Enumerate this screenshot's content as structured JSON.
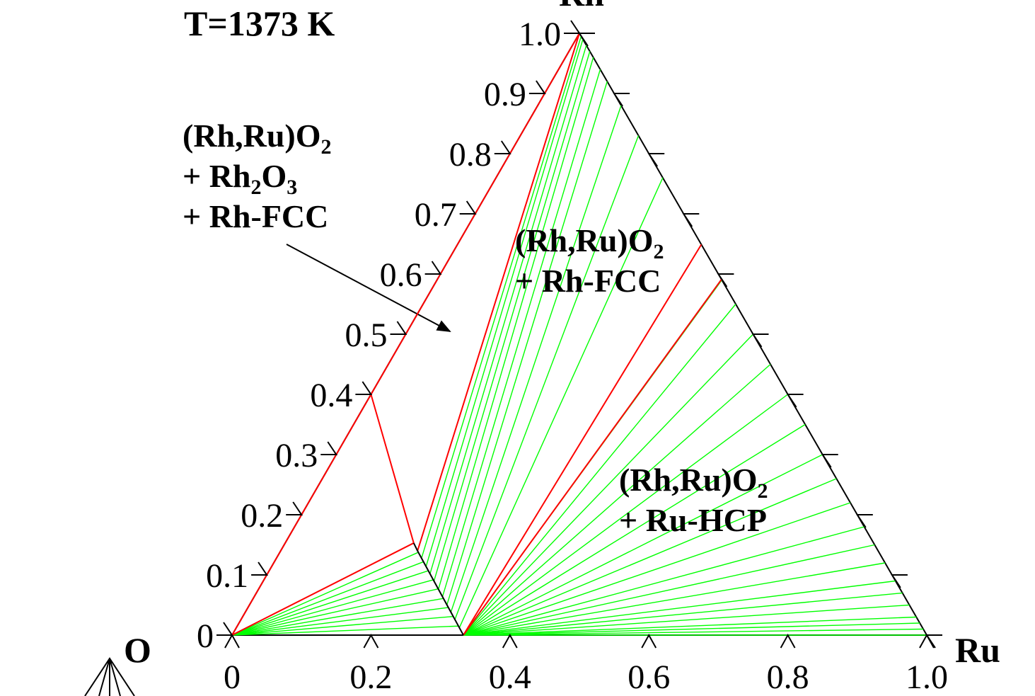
{
  "chart_data": {
    "type": "ternary",
    "title": "T=1373 K",
    "corner_labels": {
      "left": "O",
      "right": "Ru",
      "top": "Rh"
    },
    "rh_ticks": [
      0,
      0.1,
      0.2,
      0.3,
      0.4,
      0.5,
      0.6,
      0.7,
      0.8,
      0.9,
      {
        "value": 1,
        "label": "1.0"
      }
    ],
    "ru_ticks": [
      0,
      0.2,
      0.4,
      0.6,
      0.8,
      {
        "value": 1,
        "label": "1.0"
      }
    ],
    "phase_labels": [
      {
        "lines": [
          [
            "(Rh,Ru)O",
            "2"
          ],
          [
            "+ Rh",
            "2",
            "O",
            "3"
          ],
          [
            "+ Rh-FCC"
          ]
        ]
      },
      {
        "lines": [
          [
            "(Rh,Ru)O",
            "2"
          ],
          [
            "+ Rh-FCC"
          ]
        ]
      },
      {
        "lines": [
          [
            "(Rh,Ru)O",
            "2"
          ],
          [
            "+ Ru-HCP"
          ]
        ]
      }
    ],
    "boundary_color": "#ff0000",
    "oxide_line_color": "#000000",
    "tie_line_color": "#00ff00",
    "boundaries": [
      [
        [
          0,
          0
        ],
        [
          0,
          1
        ]
      ],
      [
        [
          0,
          0
        ],
        [
          0.185,
          0.153
        ]
      ],
      [
        [
          0,
          0.4
        ],
        [
          0.185,
          0.153
        ]
      ],
      [
        [
          0.197,
          0.14
        ],
        [
          0,
          1
        ]
      ],
      [
        [
          0.333,
          0
        ],
        [
          0.351,
          0.649
        ]
      ],
      [
        [
          0.333,
          0
        ],
        [
          0.409,
          0.591
        ]
      ]
    ],
    "oxide_line": [
      [
        0.185,
        0.153
      ],
      [
        0.197,
        0.14
      ],
      [
        0.333,
        0
      ]
    ],
    "tie_line_fans": [
      {
        "apex": [
          0,
          0
        ],
        "ends": [
          [
            0.185,
            0.153
          ],
          [
            0.2,
            0.138
          ],
          [
            0.215,
            0.122
          ],
          [
            0.229,
            0.107
          ],
          [
            0.244,
            0.092
          ],
          [
            0.259,
            0.077
          ],
          [
            0.274,
            0.061
          ],
          [
            0.289,
            0.046
          ],
          [
            0.303,
            0.031
          ],
          [
            0.318,
            0.015
          ]
        ]
      },
      {
        "starts": [
          [
            0.197,
            0.14
          ],
          [
            0.209,
            0.127
          ],
          [
            0.222,
            0.115
          ],
          [
            0.234,
            0.102
          ],
          [
            0.246,
            0.089
          ],
          [
            0.259,
            0.076
          ],
          [
            0.271,
            0.064
          ],
          [
            0.284,
            0.051
          ],
          [
            0.296,
            0.038
          ],
          [
            0.308,
            0.025
          ],
          [
            0.321,
            0.013
          ],
          [
            0.333,
            0
          ]
        ],
        "ends": [
          [
            0,
            1
          ],
          [
            0.005,
            0.995
          ],
          [
            0.01,
            0.99
          ],
          [
            0.02,
            0.98
          ],
          [
            0.03,
            0.97
          ],
          [
            0.04,
            0.96
          ],
          [
            0.06,
            0.94
          ],
          [
            0.08,
            0.92
          ],
          [
            0.12,
            0.88
          ],
          [
            0.17,
            0.83
          ],
          [
            0.24,
            0.76
          ],
          [
            0.351,
            0.649
          ]
        ]
      },
      {
        "apex": [
          0.333,
          0
        ],
        "ends": [
          [
            0.41,
            0.59
          ],
          [
            0.45,
            0.55
          ],
          [
            0.5,
            0.5
          ],
          [
            0.55,
            0.45
          ],
          [
            0.6,
            0.4
          ],
          [
            0.65,
            0.35
          ],
          [
            0.7,
            0.3
          ],
          [
            0.74,
            0.26
          ],
          [
            0.78,
            0.22
          ],
          [
            0.82,
            0.18
          ],
          [
            0.85,
            0.15
          ],
          [
            0.88,
            0.12
          ],
          [
            0.91,
            0.09
          ],
          [
            0.93,
            0.07
          ],
          [
            0.95,
            0.05
          ],
          [
            0.97,
            0.03
          ],
          [
            0.98,
            0.02
          ],
          [
            0.99,
            0.01
          ],
          [
            1,
            0
          ]
        ]
      }
    ]
  }
}
